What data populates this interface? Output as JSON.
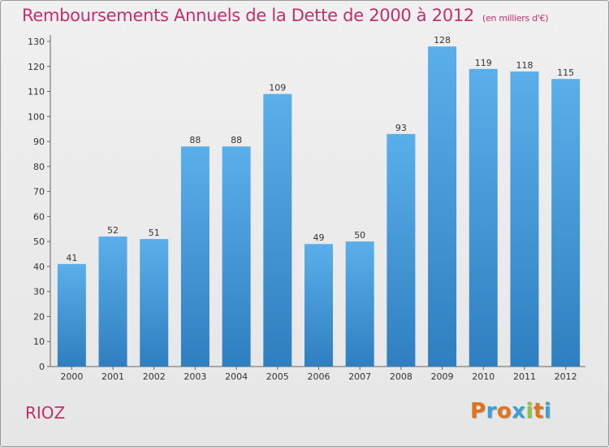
{
  "chart_data": {
    "type": "bar",
    "title": "Remboursements Annuels de la Dette de 2000 à 2012",
    "subtitle": "(en milliers d'€)",
    "categories": [
      "2000",
      "2001",
      "2002",
      "2003",
      "2004",
      "2005",
      "2006",
      "2007",
      "2008",
      "2009",
      "2010",
      "2011",
      "2012"
    ],
    "values": [
      41,
      52,
      51,
      88,
      88,
      109,
      49,
      50,
      93,
      128,
      119,
      118,
      115
    ],
    "ylim": [
      0,
      130
    ],
    "yticks": [
      0,
      10,
      20,
      30,
      40,
      50,
      60,
      70,
      80,
      90,
      100,
      110,
      120,
      130
    ],
    "grid": false,
    "bar_color": "#4a9fe0"
  },
  "footer": {
    "commune": "RIOZ",
    "logo": "Proxiti"
  }
}
